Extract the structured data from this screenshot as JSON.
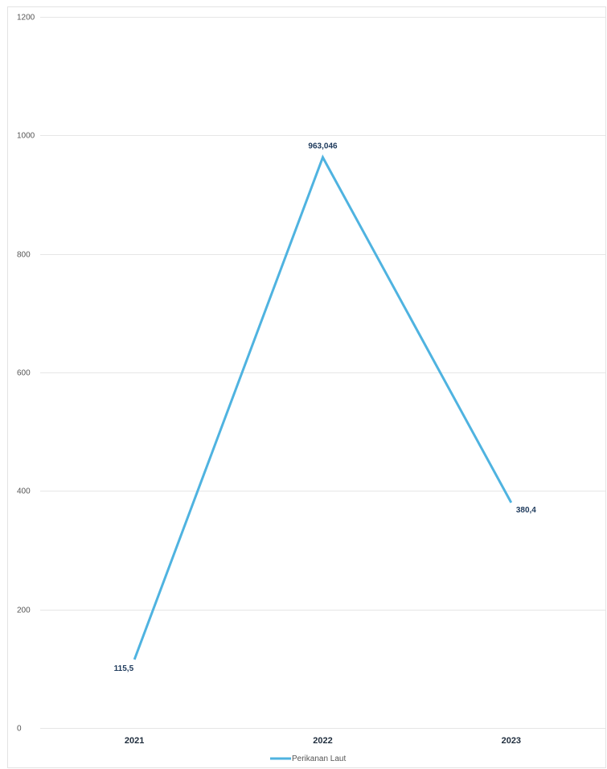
{
  "chart_data": {
    "type": "line",
    "title": "",
    "xlabel": "",
    "ylabel": "",
    "categories": [
      "2021",
      "2022",
      "2023"
    ],
    "series": [
      {
        "name": "Perikanan Laut",
        "values": [
          115.5,
          963.046,
          380.4
        ],
        "labels": [
          "115,5",
          "963,046",
          "380,4"
        ],
        "color": "#4fb3e0"
      }
    ],
    "ylim": [
      0,
      1200
    ],
    "yticks": [
      0,
      200,
      400,
      600,
      800,
      1000,
      1200
    ],
    "grid": true,
    "legend": "bottom-center"
  }
}
